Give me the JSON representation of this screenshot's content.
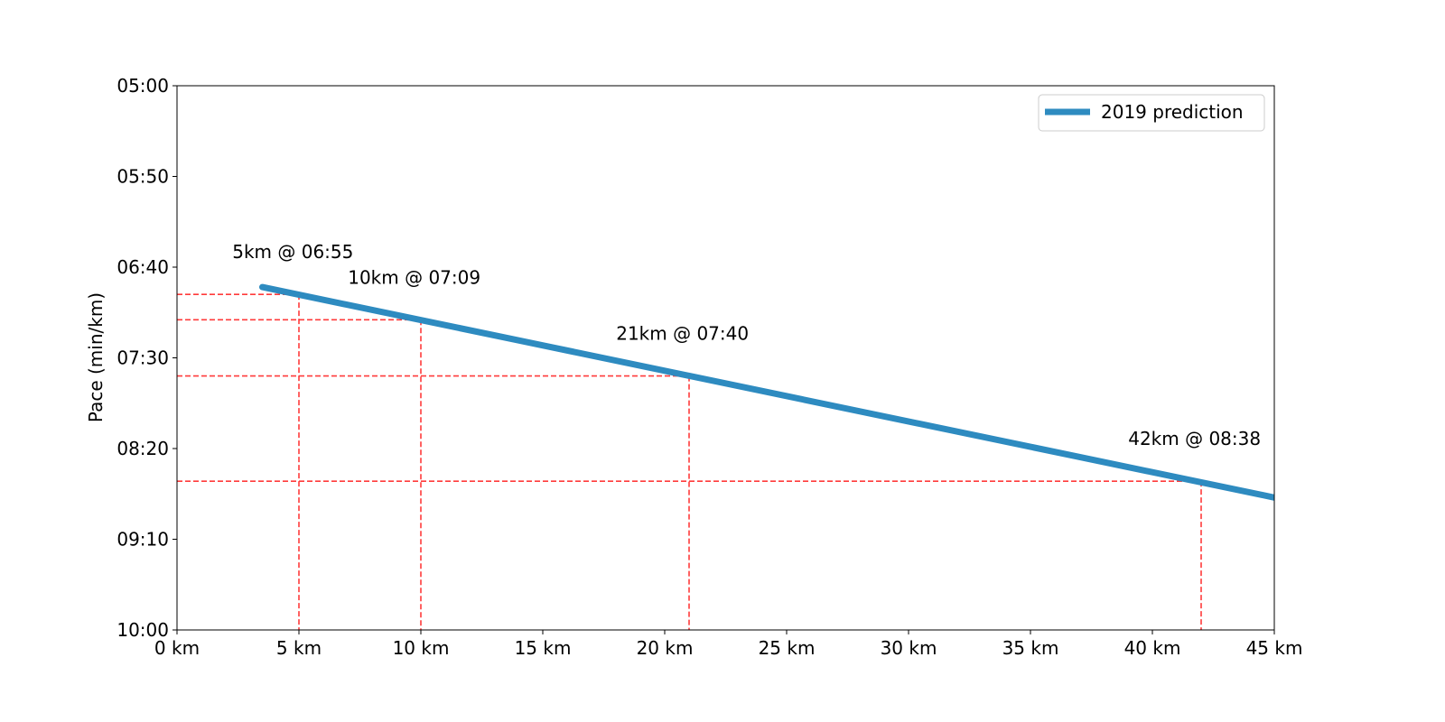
{
  "chart_data": {
    "type": "line",
    "title": "",
    "xlabel": "",
    "ylabel": "Pace (min/km)",
    "xlim": [
      0,
      45
    ],
    "ylim_seconds": [
      300,
      600
    ],
    "y_inverted": true,
    "grid": false,
    "legend_position": "top-right",
    "x_ticks": [
      {
        "value": 0,
        "label": "0 km"
      },
      {
        "value": 5,
        "label": "5 km"
      },
      {
        "value": 10,
        "label": "10 km"
      },
      {
        "value": 15,
        "label": "15 km"
      },
      {
        "value": 20,
        "label": "20 km"
      },
      {
        "value": 25,
        "label": "25 km"
      },
      {
        "value": 30,
        "label": "30 km"
      },
      {
        "value": 35,
        "label": "35 km"
      },
      {
        "value": 40,
        "label": "40 km"
      },
      {
        "value": 45,
        "label": "45 km"
      }
    ],
    "y_ticks": [
      {
        "value": 300,
        "label": "05:00"
      },
      {
        "value": 350,
        "label": "05:50"
      },
      {
        "value": 400,
        "label": "06:40"
      },
      {
        "value": 450,
        "label": "07:30"
      },
      {
        "value": 500,
        "label": "08:20"
      },
      {
        "value": 550,
        "label": "09:10"
      },
      {
        "value": 600,
        "label": "10:00"
      }
    ],
    "series": [
      {
        "name": "2019 prediction",
        "color": "#2e8bc0",
        "x": [
          3.5,
          45
        ],
        "y_seconds": [
          411,
          527
        ]
      }
    ],
    "reference_points": [
      {
        "x": 5,
        "y_seconds": 415,
        "label": "5km @ 06:55",
        "label_dx": -3,
        "label_dy": 21
      },
      {
        "x": 10,
        "y_seconds": 429,
        "label": "10km @ 07:09",
        "label_dx": -3,
        "label_dy": 24
      },
      {
        "x": 21,
        "y_seconds": 460,
        "label": "21km @ 07:40",
        "label_dx": -3,
        "label_dy": 24
      },
      {
        "x": 42,
        "y_seconds": 518,
        "label": "42km @ 08:38",
        "label_dx": -3,
        "label_dy": 24
      }
    ],
    "reference_line_color": "#ff3b3b"
  }
}
